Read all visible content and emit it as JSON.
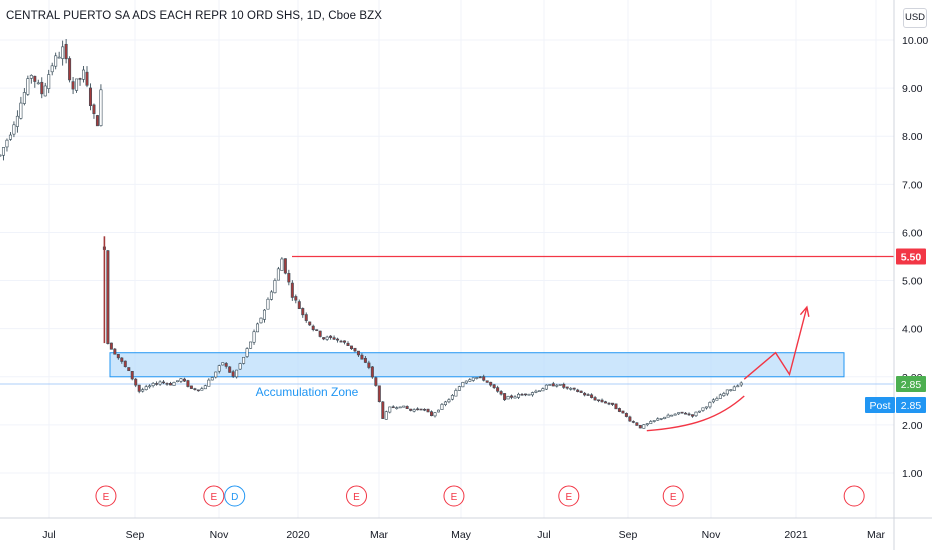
{
  "title": "CENTRAL PUERTO SA ADS EACH REPR 10 ORD SHS, 1D, Cboe BZX",
  "currency_label": "USD",
  "colors": {
    "up": "#26a69a",
    "down": "#ef5350",
    "candle_body": "#3c4f5b",
    "resistance": "#f23645",
    "zone_fill": "#bbdefb",
    "zone_border": "#2196f3",
    "grid": "#f0f3fa",
    "axis_text": "#131722",
    "current_badge": "#4caf50",
    "post_badge": "#2196f3",
    "event_earnings": "#f23645",
    "event_dividend": "#2196f3"
  },
  "chart_data": {
    "type": "candlestick",
    "y_ticks": [
      "1.00",
      "2.00",
      "3.00",
      "4.00",
      "5.00",
      "6.00",
      "7.00",
      "8.00",
      "9.00",
      "10.00"
    ],
    "ylim": [
      0.0,
      10.5
    ],
    "x_ticks": [
      "Jul",
      "Sep",
      "Nov",
      "2020",
      "Mar",
      "May",
      "Jul",
      "Sep",
      "Nov",
      "2021",
      "Mar"
    ],
    "price_path": [
      [
        0,
        7.6
      ],
      [
        3,
        8.1
      ],
      [
        6,
        8.7
      ],
      [
        9,
        9.3
      ],
      [
        12,
        8.9
      ],
      [
        15,
        9.5
      ],
      [
        18,
        9.8
      ],
      [
        21,
        9.0
      ],
      [
        24,
        9.3
      ],
      [
        27,
        8.4
      ],
      [
        28,
        8.3
      ],
      [
        29,
        8.9
      ],
      [
        30,
        5.7
      ],
      [
        31,
        3.7
      ],
      [
        34,
        3.4
      ],
      [
        37,
        3.1
      ],
      [
        40,
        2.7
      ],
      [
        43,
        2.8
      ],
      [
        46,
        2.9
      ],
      [
        49,
        2.85
      ],
      [
        52,
        2.95
      ],
      [
        55,
        2.75
      ],
      [
        58,
        2.75
      ],
      [
        61,
        3.0
      ],
      [
        64,
        3.3
      ],
      [
        67,
        3.0
      ],
      [
        70,
        3.4
      ],
      [
        73,
        3.9
      ],
      [
        76,
        4.4
      ],
      [
        79,
        5.0
      ],
      [
        81,
        5.45
      ],
      [
        82,
        5.2
      ],
      [
        84,
        4.7
      ],
      [
        87,
        4.3
      ],
      [
        90,
        4.0
      ],
      [
        93,
        3.8
      ],
      [
        96,
        3.8
      ],
      [
        99,
        3.7
      ],
      [
        102,
        3.55
      ],
      [
        104,
        3.35
      ],
      [
        106,
        3.2
      ],
      [
        108,
        2.8
      ],
      [
        110,
        2.15
      ],
      [
        112,
        2.35
      ],
      [
        115,
        2.4
      ],
      [
        118,
        2.3
      ],
      [
        121,
        2.35
      ],
      [
        124,
        2.2
      ],
      [
        127,
        2.4
      ],
      [
        130,
        2.6
      ],
      [
        133,
        2.9
      ],
      [
        136,
        3.0
      ],
      [
        139,
        2.95
      ],
      [
        142,
        2.75
      ],
      [
        145,
        2.55
      ],
      [
        148,
        2.6
      ],
      [
        151,
        2.65
      ],
      [
        154,
        2.7
      ],
      [
        157,
        2.8
      ],
      [
        160,
        2.85
      ],
      [
        163,
        2.75
      ],
      [
        166,
        2.7
      ],
      [
        169,
        2.6
      ],
      [
        172,
        2.5
      ],
      [
        175,
        2.45
      ],
      [
        178,
        2.3
      ],
      [
        181,
        2.1
      ],
      [
        184,
        1.95
      ],
      [
        187,
        2.05
      ],
      [
        190,
        2.15
      ],
      [
        193,
        2.2
      ],
      [
        196,
        2.25
      ],
      [
        199,
        2.2
      ],
      [
        202,
        2.35
      ],
      [
        205,
        2.5
      ],
      [
        208,
        2.65
      ],
      [
        211,
        2.8
      ],
      [
        213,
        2.88
      ]
    ],
    "spikes": [
      [
        30,
        5.92,
        3.7
      ]
    ],
    "resistance_level": 5.5,
    "resistance_label": "5.50",
    "accumulation_zone": {
      "low": 3.0,
      "high": 3.5,
      "label": "Accumulation Zone"
    },
    "current_price": 2.85,
    "current_price_label": "2.85",
    "post_price_label_name": "Post",
    "post_price_label_value": "2.85",
    "projection_arrow": [
      [
        213,
        2.95
      ],
      [
        222,
        3.5
      ],
      [
        226,
        3.05
      ],
      [
        231,
        4.45
      ]
    ],
    "rounded_bottom": [
      [
        185,
        1.88
      ],
      [
        198,
        1.95
      ],
      [
        206,
        2.15
      ],
      [
        213,
        2.6
      ]
    ],
    "events": [
      {
        "type": "earnings",
        "label": "E",
        "at": 27
      },
      {
        "type": "earnings",
        "label": "E",
        "at": 58
      },
      {
        "type": "dividend",
        "label": "D",
        "at": 64
      },
      {
        "type": "earnings",
        "label": "E",
        "at": 99
      },
      {
        "type": "earnings",
        "label": "E",
        "at": 127
      },
      {
        "type": "earnings",
        "label": "E",
        "at": 160
      },
      {
        "type": "earnings",
        "label": "E",
        "at": 190
      },
      {
        "type": "earnings",
        "label": "",
        "at": 242
      }
    ]
  }
}
